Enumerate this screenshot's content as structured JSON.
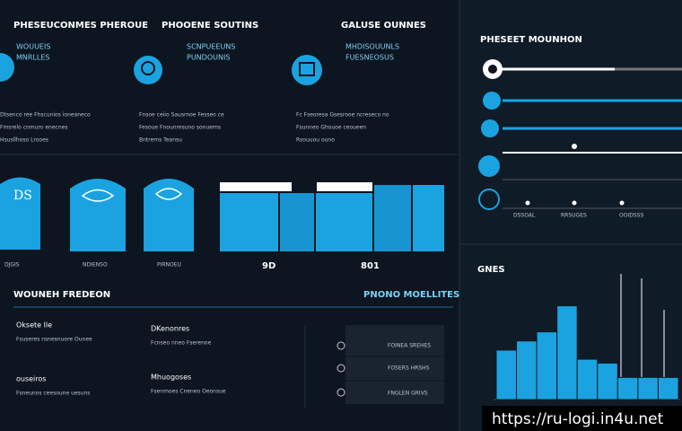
{
  "header": {
    "col1": "PHESEUCONMES PHEROUE",
    "col2": "PHOOENE SOUTINS",
    "col3": "GALUSE OUNNES"
  },
  "cards": [
    {
      "subtitle": "WOUUEIS",
      "caption": "MNRLLES",
      "lines": [
        "Dtsenco ree Fhscunios ioneaneco",
        "Fmsrelo cnmuro enecnes",
        "Hsusllhoso Lrooes"
      ]
    },
    {
      "subtitle": "SCNPUEEUNS",
      "caption": "PUNDOUNIS",
      "lines": [
        "Fnsoe ceiio Sausrnoe Fesseo ce",
        "Fesoue Fnounresuno sonuems",
        "Bntrems Teansu"
      ]
    },
    {
      "subtitle": "MHDISOUUNLS",
      "caption": "FUESNEOSUS",
      "lines": [
        "Fc Fseoresa Gsesrooe ncreseco no",
        "Fsunneo Ghouoe ceoueen",
        "Rsouuou ouno"
      ]
    }
  ],
  "shields": {
    "text": "DS",
    "labels": [
      "DJGIS",
      "NDIENSO",
      "PIRNOEU"
    ]
  },
  "block_labels": [
    "9D",
    "801"
  ],
  "sections": {
    "left": "WOUNEH FREDEON",
    "right": "PNONO MOELLITES"
  },
  "items": [
    {
      "title": "Oksete lle",
      "line": "Fsuseres nsnesnuore Ounee"
    },
    {
      "title": "ouseiros",
      "line": "Fsneunos ceesoune uesuns"
    },
    {
      "title": "DKenonres",
      "line": "Fcnseo nneo Fserenoe"
    },
    {
      "title": "Mhuogoses",
      "line": "Fsenmoes Cneneo Oeonsue"
    }
  ],
  "list": [
    "FOINEA SREHES",
    "FOSERS HRSHS",
    "FNGLEN GRIVS"
  ],
  "side": {
    "title": "PHESEET MOUNHON",
    "labels": [
      "DSSOAL",
      "RRSUGES",
      "OOIDSSS"
    ]
  },
  "chart_data": {
    "type": "bar",
    "title": "GNES",
    "color": "#1aa3e0",
    "categories": [
      null,
      null,
      null,
      null,
      null,
      null,
      null,
      null,
      null
    ],
    "values": [
      38,
      45,
      52,
      72,
      31,
      28,
      17,
      17,
      17
    ],
    "ylim": [
      0,
      100
    ]
  },
  "watermark": "https://ru-logi.in4u.net"
}
